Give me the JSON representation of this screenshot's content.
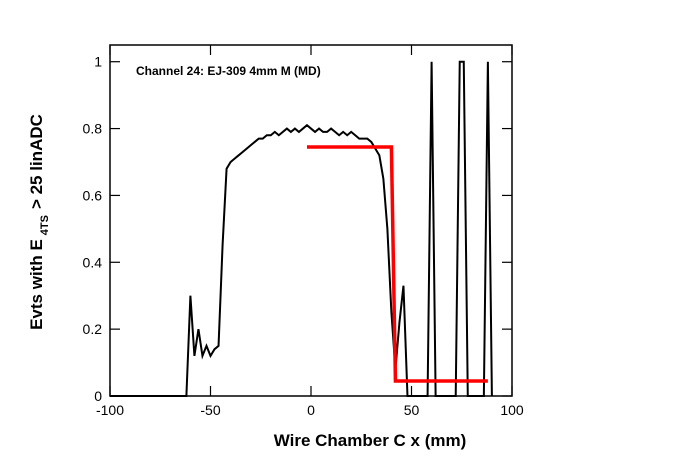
{
  "chart_data": {
    "type": "line",
    "title": "Channel 24: EJ-309 4mm M (MD)",
    "xlabel": "Wire Chamber C x (mm)",
    "ylabel": "Evts with E",
    "ylabel_sub": "4TS",
    "ylabel_end": "> 25 linADC",
    "xlim": [
      -100,
      100
    ],
    "ylim": [
      0,
      1.05
    ],
    "xticks": [
      -100,
      -50,
      0,
      50,
      100
    ],
    "yticks": [
      0,
      0.2,
      0.4,
      0.6,
      0.8,
      1
    ],
    "series": [
      {
        "color": "#000000",
        "x": [
          -100,
          -98,
          -96,
          -94,
          -92,
          -90,
          -88,
          -86,
          -84,
          -82,
          -80,
          -78,
          -76,
          -74,
          -72,
          -70,
          -68,
          -66,
          -64,
          -62,
          -60,
          -58,
          -56,
          -54,
          -52,
          -50,
          -48,
          -46,
          -44,
          -42,
          -40,
          -38,
          -36,
          -34,
          -32,
          -30,
          -28,
          -26,
          -24,
          -22,
          -20,
          -18,
          -16,
          -14,
          -12,
          -10,
          -8,
          -6,
          -4,
          -2,
          0,
          2,
          4,
          6,
          8,
          10,
          12,
          14,
          16,
          18,
          20,
          22,
          24,
          26,
          28,
          30,
          32,
          34,
          36,
          38,
          40,
          42,
          44,
          46,
          48,
          50,
          52,
          54,
          56,
          58,
          60,
          62,
          64,
          66,
          68,
          70,
          72,
          74,
          76,
          78,
          80,
          82,
          84,
          86,
          88,
          90
        ],
        "values": [
          0,
          0,
          0,
          0,
          0,
          0,
          0,
          0,
          0,
          0,
          0,
          0,
          0,
          0,
          0,
          0,
          0,
          0,
          0,
          0,
          0.3,
          0.12,
          0.2,
          0.12,
          0.15,
          0.12,
          0.14,
          0.15,
          0.45,
          0.68,
          0.7,
          0.71,
          0.72,
          0.73,
          0.74,
          0.75,
          0.76,
          0.77,
          0.77,
          0.78,
          0.78,
          0.79,
          0.78,
          0.79,
          0.8,
          0.79,
          0.8,
          0.79,
          0.8,
          0.81,
          0.8,
          0.79,
          0.8,
          0.79,
          0.79,
          0.8,
          0.79,
          0.78,
          0.79,
          0.78,
          0.79,
          0.78,
          0.77,
          0.77,
          0.77,
          0.76,
          0.74,
          0.72,
          0.65,
          0.5,
          0.25,
          0.08,
          0.22,
          0.33,
          0,
          0,
          0,
          0,
          0,
          0,
          1,
          0,
          0,
          0,
          0,
          0,
          0,
          1,
          1,
          0,
          0,
          0,
          0,
          0,
          1,
          0
        ]
      },
      {
        "color": "#ff0000",
        "x": [
          -2,
          40,
          42,
          88
        ],
        "values": [
          0.745,
          0.745,
          0.045,
          0.045
        ]
      }
    ]
  }
}
